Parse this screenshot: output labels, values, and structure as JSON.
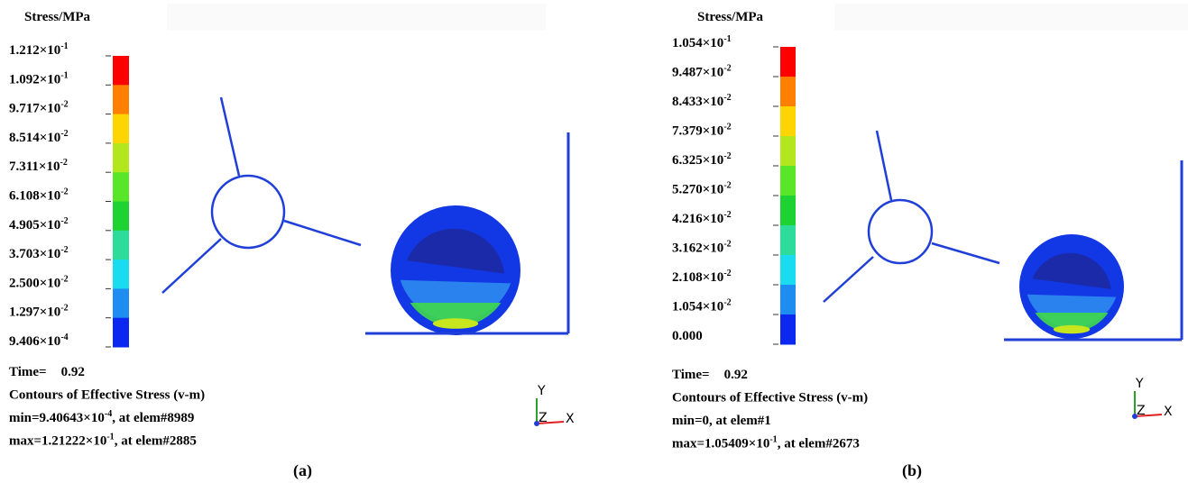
{
  "panels": [
    {
      "label": "(a)",
      "legend": {
        "title": "Stress/MPa",
        "labels": [
          {
            "base": "1.212×10",
            "exp": "-1"
          },
          {
            "base": "1.092×10",
            "exp": "-1"
          },
          {
            "base": "9.717×10",
            "exp": "-2"
          },
          {
            "base": "8.514×10",
            "exp": "-2"
          },
          {
            "base": "7.311×10",
            "exp": "-2"
          },
          {
            "base": "6.108×10",
            "exp": "-2"
          },
          {
            "base": "4.905×10",
            "exp": "-2"
          },
          {
            "base": "3.703×10",
            "exp": "-2"
          },
          {
            "base": "2.500×10",
            "exp": "-2"
          },
          {
            "base": "1.297×10",
            "exp": "-2"
          },
          {
            "base": "9.406×10",
            "exp": "-4"
          }
        ],
        "colors": [
          "#ff0000",
          "#ff7f00",
          "#ffd500",
          "#b4e61e",
          "#5ae628",
          "#1ed232",
          "#2ddc9b",
          "#19dcf0",
          "#1e8cf0",
          "#0a28f0"
        ]
      },
      "time_label": "Time=",
      "time": 0.92,
      "caption": "Contours of Effective Stress (v-m)",
      "min": {
        "text": "min=9.40643×10",
        "sup": "-4",
        "tail": ", at elem#8989"
      },
      "max": {
        "text": "max=1.21222×10",
        "sup": "-1",
        "tail": ", at elem#2885"
      },
      "axes": [
        "Y",
        "Z",
        "X"
      ]
    },
    {
      "label": "(b)",
      "legend": {
        "title": "Stress/MPa",
        "labels": [
          {
            "base": "1.054×10",
            "exp": "-1"
          },
          {
            "base": "9.487×10",
            "exp": "-2"
          },
          {
            "base": "8.433×10",
            "exp": "-2"
          },
          {
            "base": "7.379×10",
            "exp": "-2"
          },
          {
            "base": "6.325×10",
            "exp": "-2"
          },
          {
            "base": "5.270×10",
            "exp": "-2"
          },
          {
            "base": "4.216×10",
            "exp": "-2"
          },
          {
            "base": "3.162×10",
            "exp": "-2"
          },
          {
            "base": "2.108×10",
            "exp": "-2"
          },
          {
            "base": "1.054×10",
            "exp": "-2"
          },
          {
            "base": "0.000"
          }
        ],
        "colors": [
          "#ff0000",
          "#ff7f00",
          "#ffd500",
          "#b4e61e",
          "#5ae628",
          "#1ed232",
          "#2ddc9b",
          "#19dcf0",
          "#1e8cf0",
          "#0a28f0"
        ]
      },
      "time_label": "Time=",
      "time": 0.92,
      "caption": "Contours of Effective Stress (v-m)",
      "min": {
        "text": "min=0, at elem#1"
      },
      "max": {
        "text": "max=1.05409×10",
        "sup": "-1",
        "tail": ", at elem#2673"
      },
      "axes": [
        "Y",
        "Z",
        "X"
      ]
    }
  ]
}
